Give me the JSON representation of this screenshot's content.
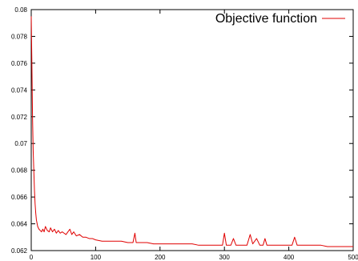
{
  "chart_data": {
    "type": "line",
    "title": "",
    "xlabel": "",
    "ylabel": "",
    "xlim": [
      0,
      500
    ],
    "ylim": [
      0.062,
      0.08
    ],
    "x_ticks": [
      0,
      100,
      200,
      300,
      400,
      500
    ],
    "x_tick_labels": [
      "0",
      "100",
      "200",
      "300",
      "400",
      "500"
    ],
    "y_ticks": [
      0.062,
      0.064,
      0.066,
      0.068,
      0.07,
      0.072,
      0.074,
      0.076,
      0.078,
      0.08
    ],
    "y_tick_labels": [
      "0.062",
      "0.064",
      "0.066",
      "0.068",
      "0.07",
      "0.072",
      "0.074",
      "0.076",
      "0.078",
      "0.08"
    ],
    "grid": false,
    "legend_position": "top-right",
    "series": [
      {
        "name": "Objective function",
        "color": "#e00000",
        "x": [
          0,
          1,
          2,
          3,
          4,
          5,
          6,
          7,
          8,
          10,
          12,
          14,
          16,
          18,
          20,
          22,
          25,
          28,
          30,
          33,
          36,
          39,
          42,
          45,
          48,
          51,
          54,
          57,
          60,
          63,
          66,
          70,
          75,
          80,
          85,
          90,
          95,
          100,
          110,
          120,
          130,
          140,
          150,
          158,
          161,
          163,
          166,
          170,
          180,
          190,
          200,
          210,
          220,
          230,
          240,
          250,
          260,
          270,
          280,
          290,
          297,
          300,
          303,
          310,
          314,
          318,
          325,
          335,
          340,
          344,
          350,
          355,
          360,
          363,
          366,
          370,
          380,
          390,
          400,
          405,
          409,
          413,
          420,
          430,
          440,
          450,
          460,
          470,
          480,
          490,
          500
        ],
        "y": [
          0.0795,
          0.076,
          0.072,
          0.0695,
          0.068,
          0.0665,
          0.0655,
          0.0648,
          0.0643,
          0.0638,
          0.0636,
          0.0635,
          0.0634,
          0.0636,
          0.0634,
          0.0638,
          0.0635,
          0.0634,
          0.0637,
          0.0634,
          0.0636,
          0.0633,
          0.0635,
          0.0633,
          0.0634,
          0.0633,
          0.0632,
          0.0634,
          0.0636,
          0.0632,
          0.0634,
          0.0631,
          0.0632,
          0.063,
          0.063,
          0.0629,
          0.0629,
          0.0628,
          0.0627,
          0.0627,
          0.0627,
          0.0627,
          0.0626,
          0.0626,
          0.0633,
          0.0626,
          0.0626,
          0.0626,
          0.0626,
          0.0625,
          0.0625,
          0.0625,
          0.0625,
          0.0625,
          0.0625,
          0.0625,
          0.0624,
          0.0624,
          0.0624,
          0.0624,
          0.0624,
          0.0633,
          0.0624,
          0.0624,
          0.0629,
          0.0624,
          0.0624,
          0.0624,
          0.0632,
          0.0625,
          0.0629,
          0.0624,
          0.0624,
          0.0629,
          0.0624,
          0.0624,
          0.0624,
          0.0624,
          0.0624,
          0.0624,
          0.063,
          0.0624,
          0.0624,
          0.0624,
          0.0624,
          0.0624,
          0.0623,
          0.0623,
          0.0623,
          0.0623,
          0.0623
        ]
      }
    ]
  }
}
